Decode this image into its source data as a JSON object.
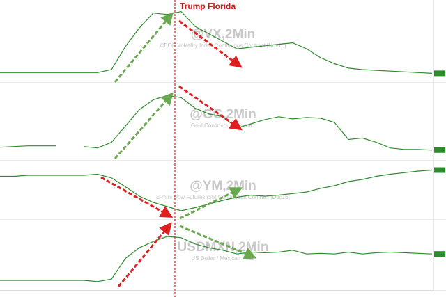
{
  "chart_data": [
    {
      "type": "line",
      "title": "@VX,2Min",
      "subtitle": "CBOE Volatility Index Continuous Contract [Nov16]",
      "annotation": "Trump Florida",
      "color": "#2e8b2e",
      "ylim": [
        0,
        100
      ],
      "values": [
        10,
        10,
        10,
        10,
        10,
        10,
        10,
        10,
        14,
        45,
        70,
        90,
        88,
        92,
        72,
        62,
        52,
        42,
        44,
        46,
        48,
        50,
        42,
        30,
        22,
        16,
        14,
        13,
        12,
        11,
        10,
        9
      ]
    },
    {
      "type": "line",
      "title": "@GC,2Min",
      "subtitle": "Gold Continuous Contract",
      "color": "#2e8b2e",
      "ylim": [
        0,
        100
      ],
      "values": [
        15,
        16,
        17,
        17,
        17,
        null,
        16,
        14,
        22,
        45,
        68,
        82,
        88,
        85,
        70,
        62,
        58,
        42,
        48,
        54,
        58,
        55,
        57,
        56,
        50,
        26,
        28,
        22,
        14,
        12,
        12,
        11
      ]
    },
    {
      "type": "line",
      "title": "@YM,2Min",
      "subtitle": "E-mini Dow Futures ($5) Continuous Contract [Dec16]",
      "color": "#2e8b2e",
      "ylim": [
        0,
        100
      ],
      "values": [
        78,
        78,
        80,
        80,
        80,
        80,
        80,
        82,
        75,
        58,
        40,
        28,
        20,
        12,
        18,
        25,
        32,
        38,
        42,
        40,
        42,
        45,
        48,
        55,
        60,
        68,
        72,
        78,
        82,
        85,
        88,
        90
      ]
    },
    {
      "type": "line",
      "title": "USDMXN,2Min",
      "subtitle": "US Dollar / Mexican Peso",
      "color": "#2e8b2e",
      "ylim": [
        0,
        100
      ],
      "values": [
        10,
        10,
        10,
        10,
        10,
        10,
        10,
        8,
        12,
        45,
        62,
        72,
        80,
        78,
        68,
        62,
        58,
        52,
        55,
        54,
        55,
        58,
        52,
        53,
        52,
        55,
        52,
        54,
        55,
        54,
        53,
        52
      ]
    }
  ]
}
